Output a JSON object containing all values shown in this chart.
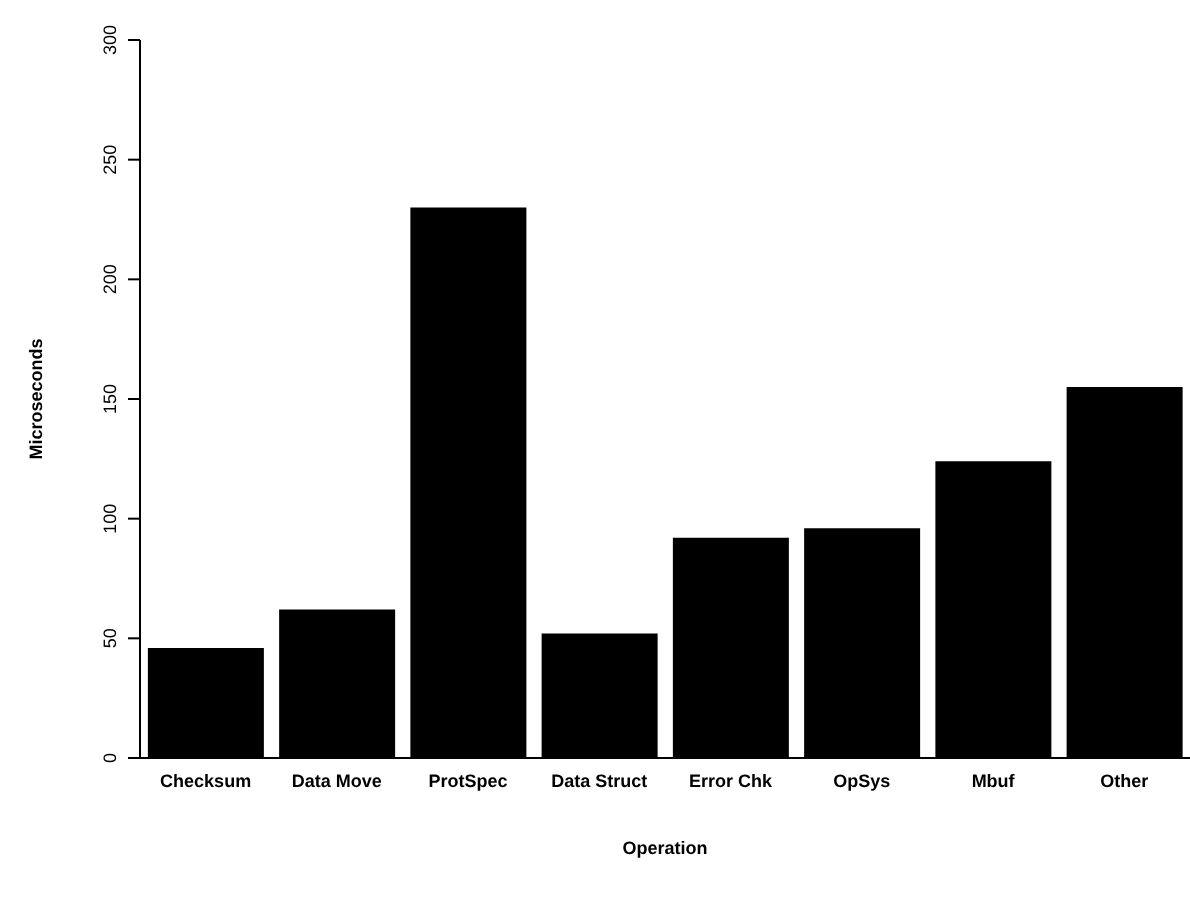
{
  "chart_data": {
    "type": "bar",
    "xlabel": "Operation",
    "ylabel": "Microseconds",
    "categories": [
      "Checksum",
      "Data Move",
      "ProtSpec",
      "Data Struct",
      "Error Chk",
      "OpSys",
      "Mbuf",
      "Other"
    ],
    "values": [
      46,
      62,
      230,
      52,
      92,
      96,
      124,
      155
    ],
    "color": "#000000",
    "ylim": [
      0,
      300
    ],
    "yticks": [
      0,
      50,
      100,
      150,
      200,
      250,
      300
    ],
    "grid": false,
    "legend": false
  }
}
